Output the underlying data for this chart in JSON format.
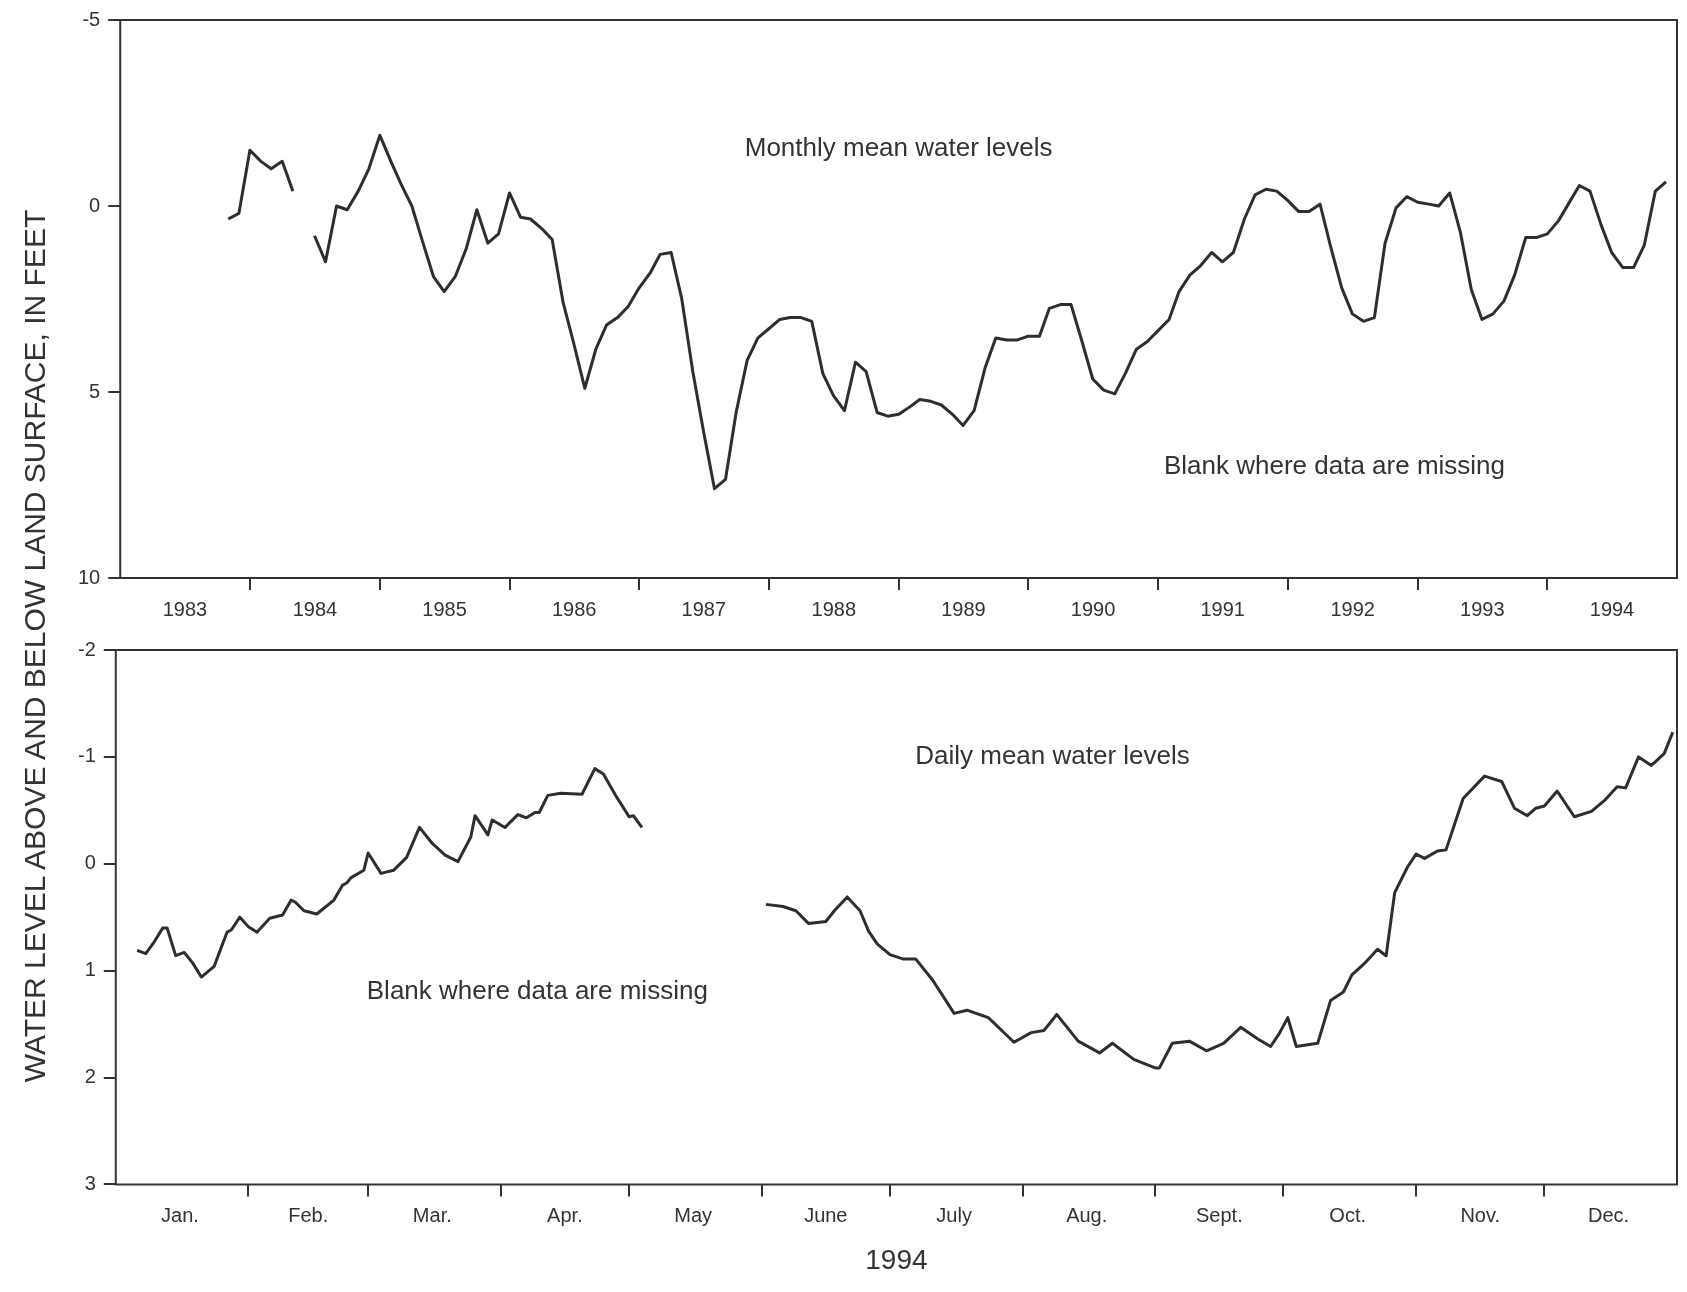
{
  "chart_data": [
    {
      "type": "line",
      "ylabel": "WATER LEVEL ABOVE AND BELOW LAND SURFACE, IN FEET",
      "annotations": [
        "Monthly mean water levels",
        "Blank where data are missing"
      ],
      "xlim": [
        "1983-01-01",
        "1995-01-01"
      ],
      "xticks": [
        {
          "value": "1983-07-02",
          "label": "1983"
        },
        {
          "value": "1984-01-01",
          "label": null
        },
        {
          "value": "1984-07-02",
          "label": "1984"
        },
        {
          "value": "1985-01-01",
          "label": null
        },
        {
          "value": "1985-07-02",
          "label": "1985"
        },
        {
          "value": "1986-01-01",
          "label": null
        },
        {
          "value": "1986-07-02",
          "label": "1986"
        },
        {
          "value": "1987-01-01",
          "label": null
        },
        {
          "value": "1987-07-02",
          "label": "1987"
        },
        {
          "value": "1988-01-01",
          "label": null
        },
        {
          "value": "1988-07-02",
          "label": "1988"
        },
        {
          "value": "1989-01-01",
          "label": null
        },
        {
          "value": "1989-07-02",
          "label": "1989"
        },
        {
          "value": "1990-01-01",
          "label": null
        },
        {
          "value": "1990-07-02",
          "label": "1990"
        },
        {
          "value": "1991-01-01",
          "label": null
        },
        {
          "value": "1991-07-02",
          "label": "1991"
        },
        {
          "value": "1992-01-01",
          "label": null
        },
        {
          "value": "1992-07-02",
          "label": "1992"
        },
        {
          "value": "1993-01-01",
          "label": null
        },
        {
          "value": "1993-07-02",
          "label": "1993"
        },
        {
          "value": "1994-01-01",
          "label": null
        },
        {
          "value": "1994-07-02",
          "label": "1994"
        }
      ],
      "ylim": [
        10,
        -5
      ],
      "yticks": [
        10,
        5,
        0,
        -5
      ],
      "x": [
        "1983-11",
        "1983-12",
        "1984-01",
        "1984-02",
        "1984-03",
        "1984-04",
        "1984-05",
        "1984-06",
        "1984-07",
        "1984-08",
        "1984-09",
        "1984-10",
        "1984-11",
        "1984-12",
        "1985-01",
        "1985-02",
        "1985-03",
        "1985-04",
        "1985-05",
        "1985-06",
        "1985-07",
        "1985-08",
        "1985-09",
        "1985-10",
        "1985-11",
        "1985-12",
        "1986-01",
        "1986-02",
        "1986-03",
        "1986-04",
        "1986-05",
        "1986-06",
        "1986-07",
        "1986-08",
        "1986-09",
        "1986-10",
        "1986-11",
        "1986-12",
        "1987-01",
        "1987-02",
        "1987-03",
        "1987-04",
        "1987-05",
        "1987-06",
        "1987-07",
        "1987-08",
        "1987-09",
        "1987-10",
        "1987-11",
        "1987-12",
        "1988-01",
        "1988-02",
        "1988-03",
        "1988-04",
        "1988-05",
        "1988-06",
        "1988-07",
        "1988-08",
        "1988-09",
        "1988-10",
        "1988-11",
        "1988-12",
        "1989-01",
        "1989-02",
        "1989-03",
        "1989-04",
        "1989-05",
        "1989-06",
        "1989-07",
        "1989-08",
        "1989-09",
        "1989-10",
        "1989-11",
        "1989-12",
        "1990-01",
        "1990-02",
        "1990-03",
        "1990-04",
        "1990-05",
        "1990-06",
        "1990-07",
        "1990-08",
        "1990-09",
        "1990-10",
        "1990-11",
        "1990-12",
        "1991-01",
        "1991-02",
        "1991-03",
        "1991-04",
        "1991-05",
        "1991-06",
        "1991-07",
        "1991-08",
        "1991-09",
        "1991-10",
        "1991-11",
        "1991-12",
        "1992-01",
        "1992-02",
        "1992-03",
        "1992-04",
        "1992-05",
        "1992-06",
        "1992-07",
        "1992-08",
        "1992-09",
        "1992-10",
        "1992-11",
        "1992-12",
        "1993-01",
        "1993-02",
        "1993-03",
        "1993-04",
        "1993-05",
        "1993-06",
        "1993-07",
        "1993-08",
        "1993-09",
        "1993-10",
        "1993-11",
        "1993-12",
        "1994-01",
        "1994-02",
        "1994-03",
        "1994-04",
        "1994-05",
        "1994-06",
        "1994-07",
        "1994-08",
        "1994-09",
        "1994-10",
        "1994-11",
        "1994-12"
      ],
      "series": [
        {
          "color": "#2e2e2e",
          "values": [
            0.35,
            0.2,
            -1.5,
            -1.2,
            -1.0,
            -1.2,
            -0.4,
            null,
            0.8,
            1.5,
            0,
            0.1,
            -0.4,
            -1.0,
            -1.9,
            -1.2,
            -0.6,
            0,
            0.95,
            1.9,
            2.3,
            1.9,
            1.15,
            0.1,
            1.0,
            0.75,
            -0.35,
            0.3,
            0.35,
            0.6,
            0.9,
            2.6,
            3.7,
            4.9,
            3.85,
            3.2,
            3.0,
            2.7,
            2.2,
            1.8,
            1.3,
            1.25,
            2.5,
            4.45,
            6.05,
            7.6,
            7.35,
            5.55,
            4.15,
            3.55,
            3.3,
            3.05,
            3.0,
            3.0,
            3.1,
            4.5,
            5.1,
            5.5,
            4.2,
            4.45,
            5.55,
            5.65,
            5.6,
            5.4,
            5.2,
            5.25,
            5.35,
            5.6,
            5.9,
            5.5,
            4.35,
            3.55,
            3.6,
            3.6,
            3.5,
            3.5,
            2.75,
            2.65,
            2.65,
            3.65,
            4.65,
            4.95,
            5.05,
            4.5,
            3.85,
            3.65,
            3.35,
            3.05,
            2.3,
            1.85,
            1.6,
            1.25,
            1.5,
            1.25,
            0.35,
            -0.3,
            -0.45,
            -0.4,
            -0.15,
            0.15,
            0.15,
            -0.05,
            1.1,
            2.2,
            2.9,
            3.1,
            3.0,
            1.0,
            0.05,
            -0.25,
            -0.1,
            -0.05,
            0,
            -0.35,
            0.7,
            2.25,
            3.05,
            2.9,
            2.55,
            1.85,
            0.85,
            0.85,
            0.75,
            0.4,
            -0.05,
            -0.55,
            -0.4,
            0.5,
            1.25,
            1.65,
            1.65,
            1.05,
            -0.4,
            -0.65
          ]
        }
      ]
    },
    {
      "type": "line",
      "xlabel": "1994",
      "annotations": [
        "Daily mean water levels",
        "Blank where data are missing"
      ],
      "xlim": [
        "1994-01-01",
        "1995-01-01"
      ],
      "xticks": [
        {
          "value": "1994-01-16",
          "label": "Jan."
        },
        {
          "value": "1994-02-01",
          "label": null
        },
        {
          "value": "1994-02-15",
          "label": "Feb."
        },
        {
          "value": "1994-03-01",
          "label": null
        },
        {
          "value": "1994-03-16",
          "label": "Mar."
        },
        {
          "value": "1994-04-01",
          "label": null
        },
        {
          "value": "1994-04-16",
          "label": "Apr."
        },
        {
          "value": "1994-05-01",
          "label": null
        },
        {
          "value": "1994-05-16",
          "label": "May"
        },
        {
          "value": "1994-06-01",
          "label": null
        },
        {
          "value": "1994-06-16",
          "label": "June"
        },
        {
          "value": "1994-07-01",
          "label": null
        },
        {
          "value": "1994-07-16",
          "label": "July"
        },
        {
          "value": "1994-08-01",
          "label": null
        },
        {
          "value": "1994-08-16",
          "label": "Aug."
        },
        {
          "value": "1994-09-01",
          "label": null
        },
        {
          "value": "1994-09-16",
          "label": "Sept."
        },
        {
          "value": "1994-10-01",
          "label": null
        },
        {
          "value": "1994-10-16",
          "label": "Oct."
        },
        {
          "value": "1994-11-01",
          "label": null
        },
        {
          "value": "1994-11-16",
          "label": "Nov."
        },
        {
          "value": "1994-12-01",
          "label": null
        },
        {
          "value": "1994-12-16",
          "label": "Dec."
        }
      ],
      "ylim": [
        3,
        -2
      ],
      "yticks": [
        3,
        2,
        1,
        0,
        -1,
        -2
      ],
      "x": [
        "1994-01-06",
        "1994-01-08",
        "1994-01-10",
        "1994-01-12",
        "1994-01-13",
        "1994-01-15",
        "1994-01-17",
        "1994-01-19",
        "1994-01-21",
        "1994-01-24",
        "1994-01-27",
        "1994-01-28",
        "1994-01-30",
        "1994-02-01",
        "1994-02-03",
        "1994-02-06",
        "1994-02-09",
        "1994-02-11",
        "1994-02-12",
        "1994-02-14",
        "1994-02-17",
        "1994-02-21",
        "1994-02-23",
        "1994-02-24",
        "1994-02-25",
        "1994-02-28",
        "1994-03-01",
        "1994-03-04",
        "1994-03-07",
        "1994-03-10",
        "1994-03-13",
        "1994-03-16",
        "1994-03-19",
        "1994-03-22",
        "1994-03-25",
        "1994-03-26",
        "1994-03-29",
        "1994-03-30",
        "1994-04-02",
        "1994-04-05",
        "1994-04-07",
        "1994-04-09",
        "1994-04-10",
        "1994-04-12",
        "1994-04-15",
        "1994-04-20",
        "1994-04-23",
        "1994-04-25",
        "1994-04-28",
        "1994-05-01",
        "1994-05-02",
        "1994-05-04",
        "1994-05-20",
        "1994-06-02",
        "1994-06-06",
        "1994-06-09",
        "1994-06-12",
        "1994-06-16",
        "1994-06-18",
        "1994-06-21",
        "1994-06-24",
        "1994-06-26",
        "1994-06-28",
        "1994-07-01",
        "1994-07-04",
        "1994-07-07",
        "1994-07-11",
        "1994-07-16",
        "1994-07-19",
        "1994-07-24",
        "1994-07-30",
        "1994-08-03",
        "1994-08-06",
        "1994-08-09",
        "1994-08-14",
        "1994-08-19",
        "1994-08-22",
        "1994-08-27",
        "1994-09-01",
        "1994-09-02",
        "1994-09-05",
        "1994-09-09",
        "1994-09-13",
        "1994-09-17",
        "1994-09-21",
        "1994-09-25",
        "1994-09-28",
        "1994-09-30",
        "1994-10-02",
        "1994-10-04",
        "1994-10-09",
        "1994-10-12",
        "1994-10-15",
        "1994-10-17",
        "1994-10-20",
        "1994-10-23",
        "1994-10-25",
        "1994-10-27",
        "1994-10-30",
        "1994-11-01",
        "1994-11-03",
        "1994-11-06",
        "1994-11-08",
        "1994-11-12",
        "1994-11-17",
        "1994-11-21",
        "1994-11-24",
        "1994-11-27",
        "1994-11-29",
        "1994-12-01",
        "1994-12-04",
        "1994-12-08",
        "1994-12-12",
        "1994-12-15",
        "1994-12-18",
        "1994-12-20",
        "1994-12-23",
        "1994-12-26",
        "1994-12-29",
        "1994-12-31"
      ],
      "series": [
        {
          "color": "#2e2e2e",
          "values": [
            0.81,
            0.84,
            0.73,
            0.6,
            0.6,
            0.86,
            0.83,
            0.93,
            1.06,
            0.96,
            0.64,
            0.62,
            0.5,
            0.59,
            0.64,
            0.51,
            0.48,
            0.34,
            0.36,
            0.44,
            0.47,
            0.34,
            0.2,
            0.18,
            0.13,
            0.06,
            -0.1,
            0.09,
            0.06,
            -0.06,
            -0.34,
            -0.19,
            -0.08,
            -0.02,
            -0.25,
            -0.45,
            -0.27,
            -0.41,
            -0.34,
            -0.46,
            -0.43,
            -0.48,
            -0.48,
            -0.64,
            -0.66,
            -0.65,
            -0.89,
            -0.84,
            -0.63,
            -0.44,
            -0.45,
            -0.34,
            null,
            0.38,
            0.4,
            0.44,
            0.56,
            0.54,
            0.44,
            0.31,
            0.44,
            0.63,
            0.75,
            0.85,
            0.89,
            0.89,
            1.09,
            1.4,
            1.37,
            1.44,
            1.67,
            1.58,
            1.56,
            1.41,
            1.66,
            1.77,
            1.68,
            1.83,
            1.91,
            1.91,
            1.68,
            1.66,
            1.75,
            1.68,
            1.53,
            1.64,
            1.71,
            1.59,
            1.44,
            1.71,
            1.68,
            1.28,
            1.2,
            1.04,
            0.93,
            0.8,
            0.86,
            0.27,
            0.03,
            -0.09,
            -0.05,
            -0.12,
            -0.13,
            -0.61,
            -0.82,
            -0.77,
            -0.52,
            -0.45,
            -0.52,
            -0.54,
            -0.68,
            -0.44,
            -0.49,
            -0.59,
            -0.72,
            -0.71,
            -1.0,
            -0.92,
            -1.03,
            -1.23
          ]
        }
      ]
    }
  ]
}
